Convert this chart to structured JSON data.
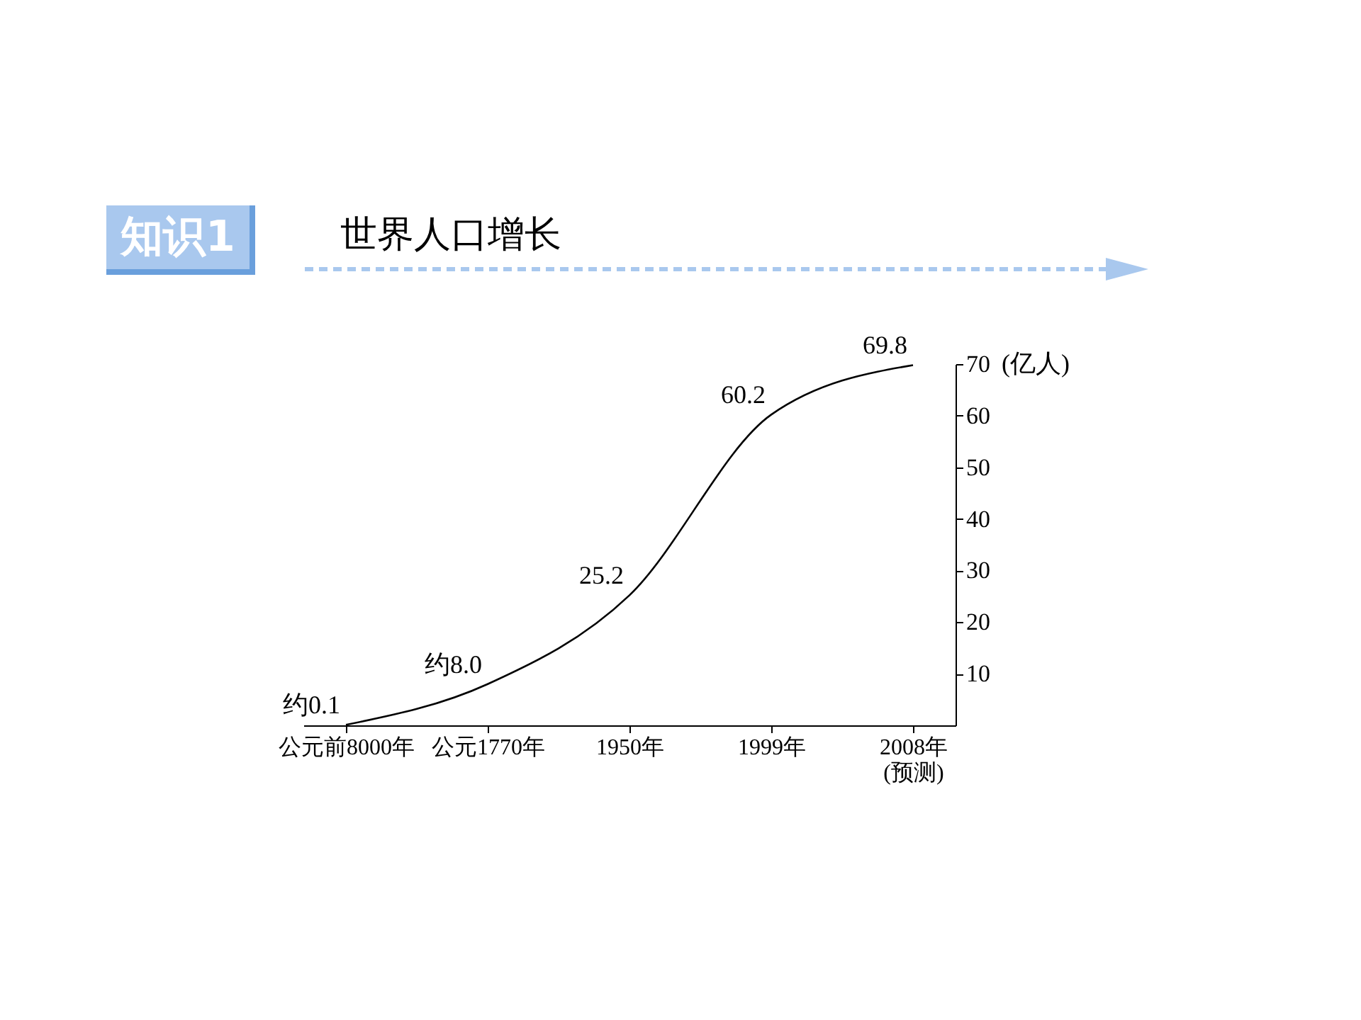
{
  "chart_data": {
    "type": "line",
    "title": "世界人口增长",
    "annotations": [
      "知识1"
    ],
    "ylabel": "(亿人)",
    "categories": [
      "公元前8000年",
      "公元1770年",
      "1950年",
      "1999年",
      "2008年\n(预测)"
    ],
    "series": [
      {
        "color": "#000000",
        "values": [
          0.1,
          8.0,
          25.2,
          60.2,
          69.8
        ],
        "value_labels": [
          "约0.1",
          "约8.0",
          "25.2",
          "60.2",
          "69.8"
        ]
      }
    ],
    "ylim": [
      0,
      70
    ],
    "yticks": [
      10,
      20,
      30,
      40,
      50,
      60,
      70
    ],
    "grid": false,
    "marker": "none",
    "line_style": "solid"
  }
}
